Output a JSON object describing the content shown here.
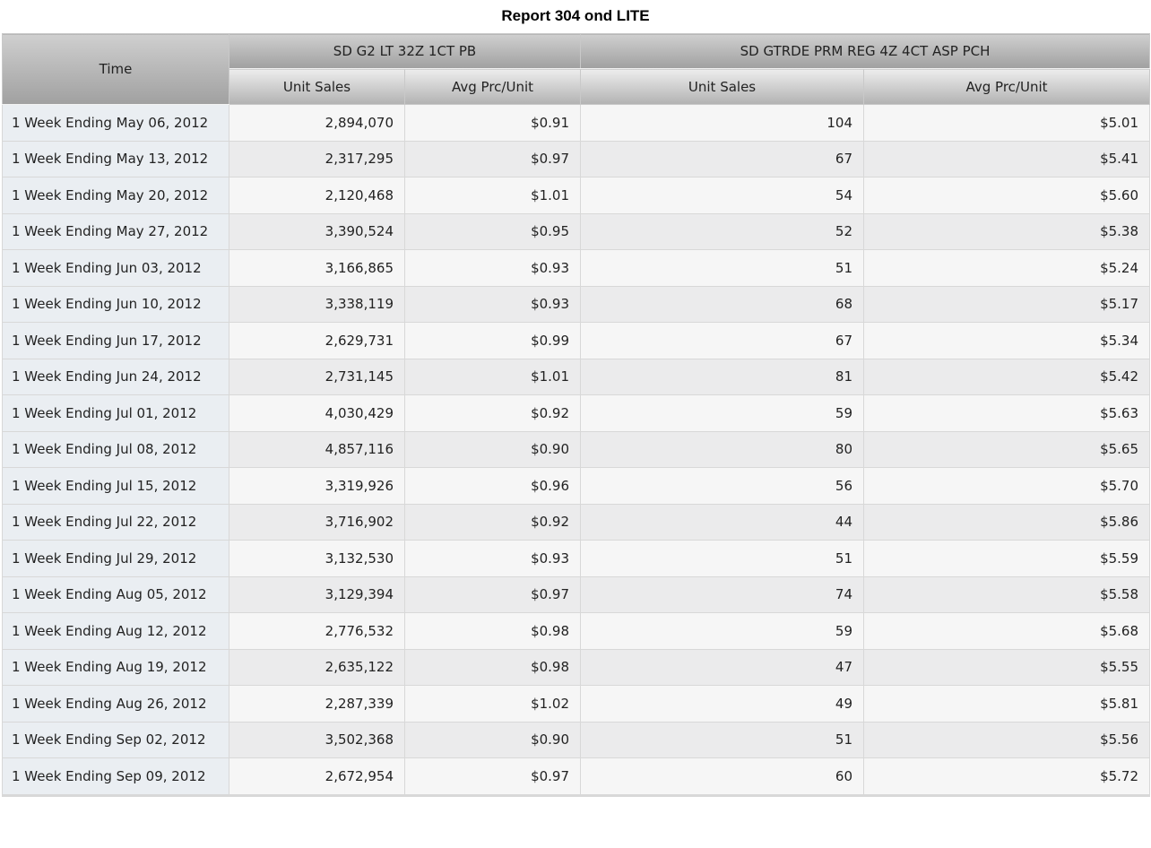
{
  "report": {
    "title": "Report 304 ond LITE"
  },
  "table": {
    "time_header": "Time",
    "groups": [
      {
        "name": "SD G2 LT 32Z 1CT PB",
        "columns": [
          "Unit Sales",
          "Avg Prc/Unit"
        ]
      },
      {
        "name": "SD GTRDE PRM REG 4Z 4CT ASP PCH",
        "columns": [
          "Unit Sales",
          "Avg Prc/Unit"
        ]
      }
    ],
    "rows": [
      [
        "1 Week Ending May 06, 2012",
        "2,894,070",
        "$0.91",
        "104",
        "$5.01"
      ],
      [
        "1 Week Ending May 13, 2012",
        "2,317,295",
        "$0.97",
        "67",
        "$5.41"
      ],
      [
        "1 Week Ending May 20, 2012",
        "2,120,468",
        "$1.01",
        "54",
        "$5.60"
      ],
      [
        "1 Week Ending May 27, 2012",
        "3,390,524",
        "$0.95",
        "52",
        "$5.38"
      ],
      [
        "1 Week Ending Jun 03, 2012",
        "3,166,865",
        "$0.93",
        "51",
        "$5.24"
      ],
      [
        "1 Week Ending Jun 10, 2012",
        "3,338,119",
        "$0.93",
        "68",
        "$5.17"
      ],
      [
        "1 Week Ending Jun 17, 2012",
        "2,629,731",
        "$0.99",
        "67",
        "$5.34"
      ],
      [
        "1 Week Ending Jun 24, 2012",
        "2,731,145",
        "$1.01",
        "81",
        "$5.42"
      ],
      [
        "1 Week Ending Jul 01, 2012",
        "4,030,429",
        "$0.92",
        "59",
        "$5.63"
      ],
      [
        "1 Week Ending Jul 08, 2012",
        "4,857,116",
        "$0.90",
        "80",
        "$5.65"
      ],
      [
        "1 Week Ending Jul 15, 2012",
        "3,319,926",
        "$0.96",
        "56",
        "$5.70"
      ],
      [
        "1 Week Ending Jul 22, 2012",
        "3,716,902",
        "$0.92",
        "44",
        "$5.86"
      ],
      [
        "1 Week Ending Jul 29, 2012",
        "3,132,530",
        "$0.93",
        "51",
        "$5.59"
      ],
      [
        "1 Week Ending Aug 05, 2012",
        "3,129,394",
        "$0.97",
        "74",
        "$5.58"
      ],
      [
        "1 Week Ending Aug 12, 2012",
        "2,776,532",
        "$0.98",
        "59",
        "$5.68"
      ],
      [
        "1 Week Ending Aug 19, 2012",
        "2,635,122",
        "$0.98",
        "47",
        "$5.55"
      ],
      [
        "1 Week Ending Aug 26, 2012",
        "2,287,339",
        "$1.02",
        "49",
        "$5.81"
      ],
      [
        "1 Week Ending Sep 02, 2012",
        "3,502,368",
        "$0.90",
        "51",
        "$5.56"
      ],
      [
        "1 Week Ending Sep 09, 2012",
        "2,672,954",
        "$0.97",
        "60",
        "$5.72"
      ]
    ]
  }
}
